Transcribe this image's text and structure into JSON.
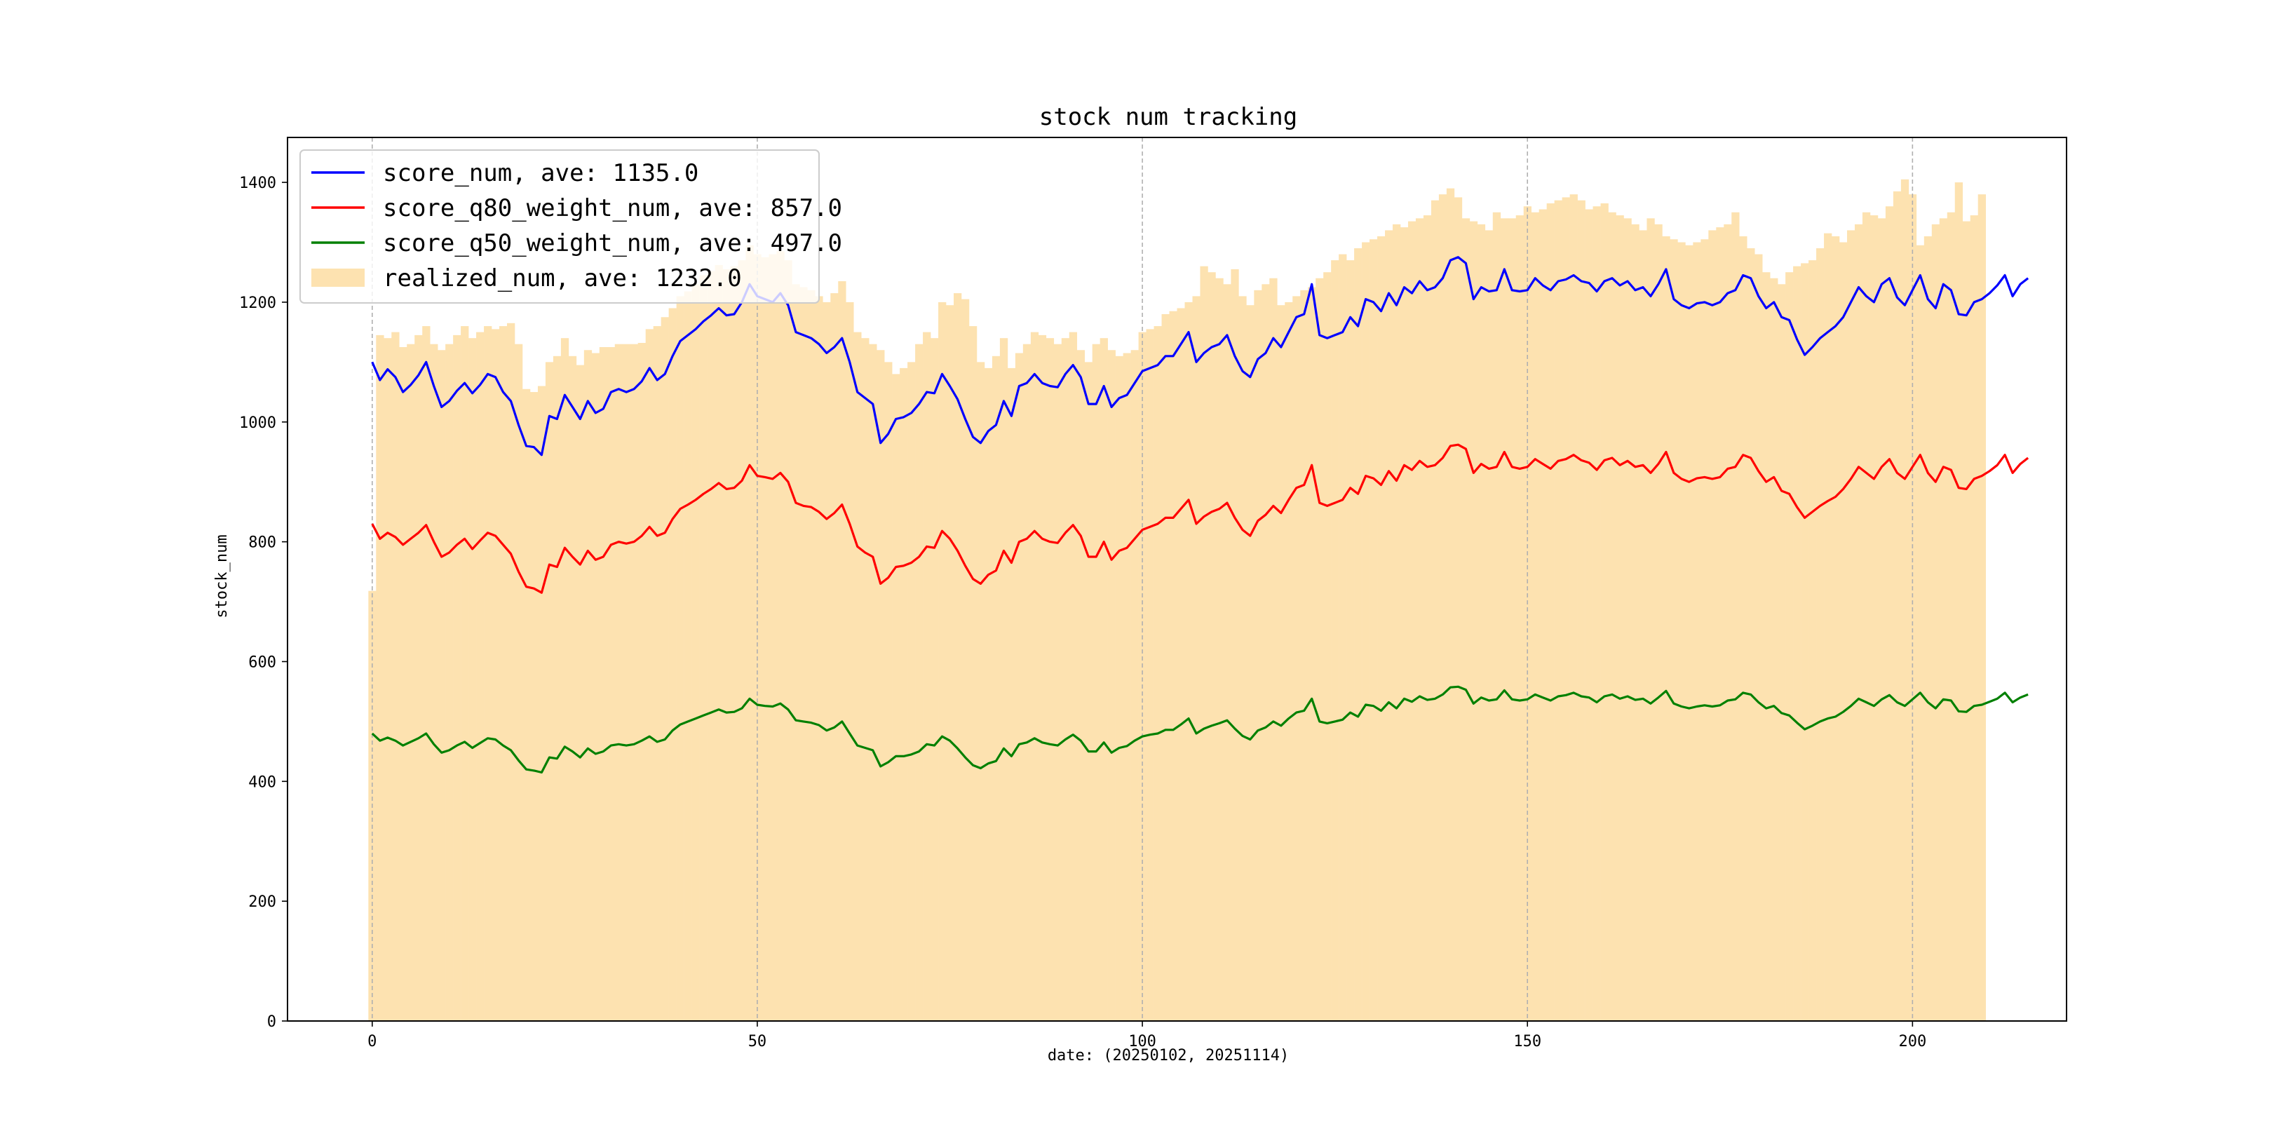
{
  "chart_data": {
    "type": "line",
    "title": "stock num tracking",
    "xlabel": "date: (20250102, 20251114)",
    "ylabel": "stock_num",
    "xlim": [
      -11,
      220
    ],
    "ylim": [
      0,
      1475
    ],
    "xticks": [
      "0",
      "50",
      "100",
      "150",
      "200"
    ],
    "yticks": [
      "0",
      "200",
      "400",
      "600",
      "800",
      "1000",
      "1200",
      "1400"
    ],
    "grid": "vertical dashed at x ticks",
    "legend_position": "upper-left",
    "series": [
      {
        "name": "score_num, ave: 1135.0",
        "kind": "line",
        "color": "#0000ff",
        "values": [
          1100,
          1070,
          1088,
          1075,
          1050,
          1062,
          1078,
          1100,
          1060,
          1025,
          1035,
          1052,
          1065,
          1048,
          1062,
          1080,
          1075,
          1050,
          1035,
          995,
          960,
          958,
          945,
          1010,
          1005,
          1045,
          1025,
          1005,
          1035,
          1015,
          1022,
          1050,
          1055,
          1050,
          1055,
          1068,
          1090,
          1070,
          1080,
          1110,
          1135,
          1145,
          1155,
          1168,
          1178,
          1190,
          1178,
          1180,
          1200,
          1230,
          1210,
          1205,
          1200,
          1215,
          1195,
          1150,
          1145,
          1140,
          1130,
          1115,
          1125,
          1140,
          1100,
          1050,
          1040,
          1030,
          965,
          980,
          1005,
          1008,
          1015,
          1030,
          1050,
          1048,
          1080,
          1060,
          1038,
          1005,
          975,
          965,
          985,
          995,
          1035,
          1010,
          1060,
          1065,
          1080,
          1065,
          1060,
          1058,
          1080,
          1095,
          1075,
          1030,
          1030,
          1060,
          1025,
          1040,
          1045,
          1065,
          1085,
          1090,
          1095,
          1110,
          1110,
          1130,
          1150,
          1100,
          1115,
          1125,
          1130,
          1145,
          1110,
          1085,
          1075,
          1105,
          1115,
          1140,
          1125,
          1150,
          1175,
          1180,
          1230,
          1145,
          1140,
          1145,
          1150,
          1175,
          1160,
          1205,
          1200,
          1185,
          1215,
          1195,
          1225,
          1215,
          1235,
          1220,
          1225,
          1240,
          1270,
          1275,
          1265,
          1205,
          1225,
          1218,
          1220,
          1255,
          1220,
          1218,
          1220,
          1240,
          1228,
          1220,
          1235,
          1238,
          1245,
          1235,
          1232,
          1218,
          1235,
          1240,
          1228,
          1235,
          1220,
          1225,
          1210,
          1230,
          1255,
          1205,
          1195,
          1190,
          1198,
          1200,
          1195,
          1200,
          1215,
          1220,
          1245,
          1240,
          1210,
          1190,
          1200,
          1175,
          1170,
          1138,
          1112,
          1125,
          1140,
          1150,
          1160,
          1175,
          1200,
          1225,
          1210,
          1200,
          1230,
          1240,
          1208,
          1195,
          1220,
          1245,
          1205,
          1190,
          1230,
          1220,
          1180,
          1178,
          1200,
          1205,
          1215,
          1228,
          1245,
          1210,
          1230,
          1240
        ]
      },
      {
        "name": "score_q80_weight_num, ave: 857.0",
        "kind": "line",
        "color": "#ff0000",
        "values": [
          830,
          805,
          815,
          808,
          795,
          805,
          815,
          828,
          800,
          775,
          782,
          795,
          805,
          788,
          802,
          815,
          810,
          795,
          780,
          750,
          725,
          722,
          715,
          762,
          758,
          790,
          775,
          762,
          785,
          770,
          775,
          795,
          800,
          797,
          800,
          810,
          825,
          810,
          815,
          838,
          855,
          862,
          870,
          880,
          888,
          898,
          888,
          890,
          902,
          928,
          910,
          908,
          905,
          915,
          900,
          865,
          860,
          858,
          850,
          838,
          848,
          862,
          830,
          792,
          782,
          775,
          730,
          740,
          758,
          760,
          765,
          775,
          792,
          790,
          818,
          805,
          785,
          760,
          738,
          730,
          745,
          752,
          785,
          765,
          800,
          805,
          818,
          805,
          800,
          798,
          815,
          828,
          810,
          775,
          775,
          800,
          770,
          785,
          790,
          805,
          820,
          825,
          830,
          840,
          840,
          855,
          870,
          830,
          842,
          850,
          855,
          865,
          840,
          820,
          810,
          835,
          845,
          860,
          848,
          870,
          890,
          895,
          928,
          865,
          860,
          865,
          870,
          890,
          880,
          910,
          906,
          895,
          918,
          902,
          928,
          920,
          935,
          925,
          928,
          940,
          960,
          962,
          955,
          915,
          930,
          922,
          925,
          950,
          925,
          922,
          925,
          938,
          930,
          922,
          935,
          938,
          945,
          936,
          932,
          920,
          936,
          940,
          928,
          935,
          925,
          928,
          915,
          930,
          950,
          915,
          905,
          900,
          906,
          908,
          905,
          908,
          922,
          925,
          945,
          940,
          918,
          900,
          908,
          885,
          880,
          858,
          840,
          850,
          860,
          868,
          875,
          888,
          905,
          925,
          915,
          905,
          925,
          938,
          915,
          905,
          925,
          945,
          915,
          900,
          925,
          920,
          890,
          888,
          905,
          910,
          918,
          928,
          945,
          915,
          930,
          940
        ]
      },
      {
        "name": "score_q50_weight_num, ave: 497.0",
        "kind": "line",
        "color": "#008000",
        "values": [
          480,
          468,
          473,
          468,
          460,
          466,
          472,
          480,
          462,
          448,
          452,
          460,
          466,
          456,
          464,
          472,
          470,
          460,
          452,
          435,
          420,
          418,
          415,
          440,
          438,
          458,
          450,
          440,
          455,
          446,
          450,
          460,
          462,
          460,
          462,
          468,
          475,
          466,
          470,
          485,
          495,
          500,
          505,
          510,
          515,
          520,
          515,
          516,
          522,
          538,
          528,
          526,
          525,
          530,
          520,
          502,
          500,
          498,
          494,
          485,
          490,
          500,
          480,
          460,
          456,
          452,
          425,
          432,
          442,
          442,
          445,
          450,
          462,
          460,
          475,
          468,
          455,
          440,
          427,
          422,
          430,
          434,
          455,
          442,
          462,
          465,
          472,
          465,
          462,
          460,
          470,
          478,
          468,
          450,
          450,
          465,
          448,
          456,
          459,
          468,
          475,
          478,
          480,
          486,
          486,
          495,
          505,
          480,
          488,
          493,
          497,
          502,
          488,
          476,
          470,
          485,
          490,
          500,
          493,
          505,
          515,
          518,
          538,
          500,
          497,
          500,
          503,
          515,
          508,
          528,
          526,
          518,
          532,
          522,
          538,
          533,
          542,
          536,
          538,
          545,
          557,
          558,
          553,
          530,
          540,
          535,
          537,
          552,
          537,
          535,
          537,
          545,
          540,
          535,
          542,
          544,
          548,
          542,
          540,
          532,
          542,
          545,
          538,
          542,
          536,
          538,
          530,
          540,
          551,
          530,
          525,
          522,
          525,
          527,
          525,
          527,
          535,
          537,
          548,
          545,
          532,
          522,
          526,
          514,
          510,
          498,
          487,
          493,
          500,
          505,
          508,
          516,
          526,
          538,
          532,
          526,
          537,
          544,
          532,
          526,
          537,
          548,
          532,
          522,
          537,
          535,
          517,
          516,
          526,
          528,
          533,
          538,
          548,
          532,
          540,
          545
        ]
      },
      {
        "name": "realized_num, ave: 1232.0",
        "kind": "bar",
        "color": "#fde2b0",
        "values": [
          718,
          1145,
          1140,
          1150,
          1125,
          1130,
          1145,
          1160,
          1130,
          1120,
          1130,
          1145,
          1160,
          1140,
          1150,
          1160,
          1155,
          1160,
          1165,
          1130,
          1055,
          1050,
          1060,
          1100,
          1110,
          1140,
          1110,
          1095,
          1120,
          1115,
          1125,
          1125,
          1130,
          1130,
          1130,
          1132,
          1155,
          1160,
          1175,
          1190,
          1210,
          1218,
          1230,
          1245,
          1252,
          1262,
          1255,
          1260,
          1270,
          1295,
          1280,
          1275,
          1280,
          1285,
          1270,
          1230,
          1225,
          1220,
          1210,
          1200,
          1215,
          1235,
          1200,
          1150,
          1140,
          1130,
          1120,
          1100,
          1080,
          1090,
          1100,
          1130,
          1150,
          1140,
          1200,
          1195,
          1215,
          1205,
          1160,
          1100,
          1090,
          1110,
          1140,
          1090,
          1115,
          1130,
          1150,
          1145,
          1140,
          1130,
          1140,
          1150,
          1120,
          1100,
          1130,
          1140,
          1120,
          1110,
          1115,
          1120,
          1150,
          1155,
          1160,
          1180,
          1185,
          1190,
          1200,
          1210,
          1260,
          1250,
          1240,
          1230,
          1255,
          1210,
          1195,
          1220,
          1230,
          1240,
          1195,
          1200,
          1210,
          1220,
          1225,
          1240,
          1250,
          1270,
          1280,
          1270,
          1290,
          1300,
          1305,
          1310,
          1320,
          1330,
          1325,
          1335,
          1340,
          1345,
          1370,
          1380,
          1390,
          1375,
          1340,
          1335,
          1330,
          1320,
          1350,
          1340,
          1340,
          1345,
          1360,
          1350,
          1355,
          1365,
          1370,
          1375,
          1380,
          1370,
          1355,
          1360,
          1365,
          1350,
          1345,
          1340,
          1330,
          1320,
          1340,
          1330,
          1310,
          1305,
          1300,
          1295,
          1300,
          1305,
          1320,
          1325,
          1330,
          1350,
          1310,
          1290,
          1280,
          1250,
          1240,
          1230,
          1250,
          1260,
          1265,
          1270,
          1290,
          1315,
          1310,
          1300,
          1320,
          1330,
          1350,
          1345,
          1340,
          1360,
          1385,
          1405,
          1380,
          1295,
          1310,
          1330,
          1340,
          1350,
          1400,
          1335,
          1345,
          1380
        ]
      }
    ]
  }
}
